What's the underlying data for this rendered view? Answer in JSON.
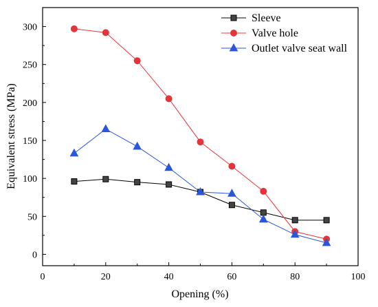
{
  "chart_data": {
    "type": "line",
    "xlabel": "Opening (%)",
    "ylabel": "Equivalent stress (MPa)",
    "xlim": [
      0,
      100
    ],
    "ylim": [
      -15,
      325
    ],
    "xticks": [
      0,
      20,
      40,
      60,
      80,
      100
    ],
    "yticks": [
      0,
      50,
      100,
      150,
      200,
      250,
      300
    ],
    "legend_position": "top-right",
    "grid": false,
    "series": [
      {
        "name": "Sleeve",
        "marker": "square",
        "color": "#000000",
        "fill": "#444444",
        "x": [
          10,
          20,
          30,
          40,
          50,
          60,
          70,
          80,
          90
        ],
        "y": [
          96,
          99,
          95,
          92,
          82,
          65,
          55,
          45,
          45
        ]
      },
      {
        "name": "Valve hole",
        "marker": "circle",
        "color": "#e8333a",
        "fill": "#e8333a",
        "x": [
          10,
          20,
          30,
          40,
          50,
          60,
          70,
          80,
          90
        ],
        "y": [
          297,
          292,
          255,
          205,
          148,
          116,
          83,
          30,
          20
        ]
      },
      {
        "name": "Outlet valve seat wall",
        "marker": "triangle",
        "color": "#2a56d8",
        "fill": "#2a56d8",
        "x": [
          10,
          20,
          30,
          40,
          50,
          60,
          70,
          80,
          90
        ],
        "y": [
          133,
          165,
          142,
          114,
          82,
          80,
          46,
          26,
          15
        ]
      }
    ]
  }
}
